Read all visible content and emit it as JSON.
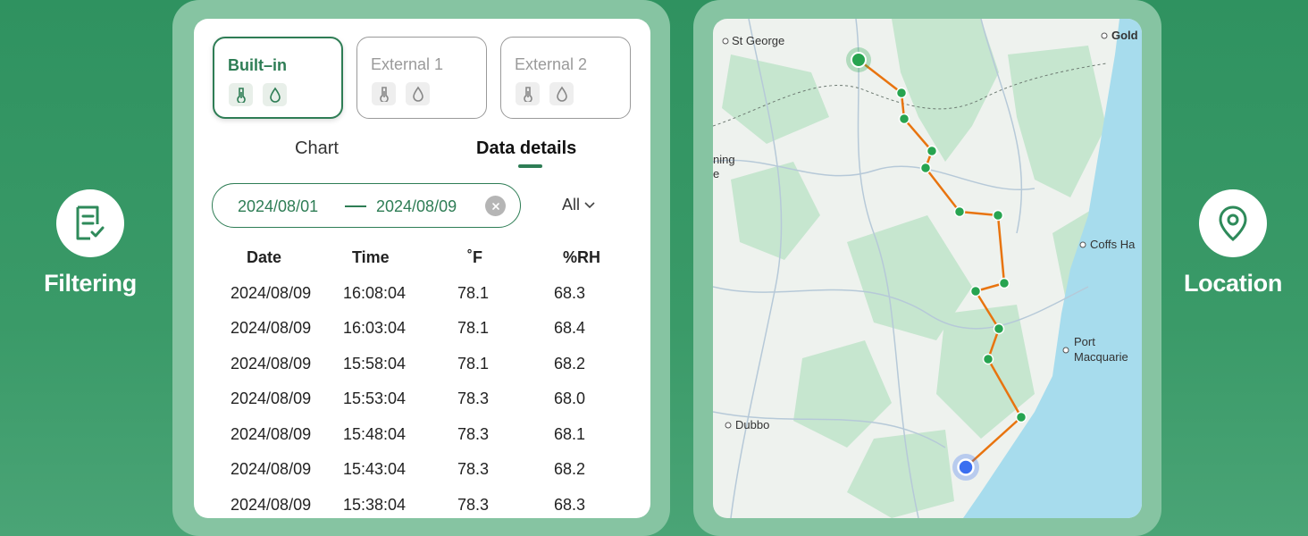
{
  "features": {
    "left": {
      "label": "Filtering",
      "icon": "document-check-icon"
    },
    "right": {
      "label": "Location",
      "icon": "location-pin-icon"
    }
  },
  "sensors": [
    {
      "name": "Built–in",
      "active": true
    },
    {
      "name": "External 1",
      "active": false
    },
    {
      "name": "External 2",
      "active": false
    }
  ],
  "tabs": {
    "chart": "Chart",
    "details": "Data details",
    "selected": "details"
  },
  "date_range": {
    "start": "2024/08/01",
    "end": "2024/08/09"
  },
  "filter": {
    "value": "All"
  },
  "table": {
    "headers": [
      "Date",
      "Time",
      "˚F",
      "%RH"
    ],
    "rows": [
      [
        "2024/08/09",
        "16:08:04",
        "78.1",
        "68.3"
      ],
      [
        "2024/08/09",
        "16:03:04",
        "78.1",
        "68.4"
      ],
      [
        "2024/08/09",
        "15:58:04",
        "78.1",
        "68.2"
      ],
      [
        "2024/08/09",
        "15:53:04",
        "78.3",
        "68.0"
      ],
      [
        "2024/08/09",
        "15:48:04",
        "78.3",
        "68.1"
      ],
      [
        "2024/08/09",
        "15:43:04",
        "78.3",
        "68.2"
      ],
      [
        "2024/08/09",
        "15:38:04",
        "78.3",
        "68.3"
      ]
    ]
  },
  "map": {
    "places": [
      "St George",
      "Gold",
      "ning",
      "e",
      "Coffs Ha",
      "Port",
      "Macquarie",
      "Dubbo"
    ],
    "colors": {
      "route": "#e8740f",
      "waypoint": "#27a450",
      "current": "#3b6ff0",
      "water": "#a7dced",
      "land": "#eef2ee",
      "forest": "#c6e6cf"
    }
  }
}
